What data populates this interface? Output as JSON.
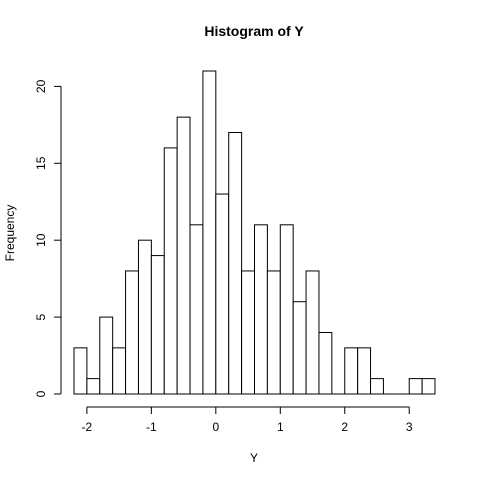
{
  "chart_data": {
    "type": "bar",
    "title": "Histogram of Y",
    "xlabel": "Y",
    "ylabel": "Frequency",
    "bin_width": 0.2,
    "bins": [
      {
        "start": -2.2,
        "end": -2.0,
        "count": 3
      },
      {
        "start": -2.0,
        "end": -1.8,
        "count": 1
      },
      {
        "start": -1.8,
        "end": -1.6,
        "count": 5
      },
      {
        "start": -1.6,
        "end": -1.4,
        "count": 3
      },
      {
        "start": -1.4,
        "end": -1.2,
        "count": 8
      },
      {
        "start": -1.2,
        "end": -1.0,
        "count": 10
      },
      {
        "start": -1.0,
        "end": -0.8,
        "count": 9
      },
      {
        "start": -0.8,
        "end": -0.6,
        "count": 16
      },
      {
        "start": -0.6,
        "end": -0.4,
        "count": 18
      },
      {
        "start": -0.4,
        "end": -0.2,
        "count": 11
      },
      {
        "start": -0.2,
        "end": 0.0,
        "count": 21
      },
      {
        "start": 0.0,
        "end": 0.2,
        "count": 13
      },
      {
        "start": 0.2,
        "end": 0.4,
        "count": 17
      },
      {
        "start": 0.4,
        "end": 0.6,
        "count": 8
      },
      {
        "start": 0.6,
        "end": 0.8,
        "count": 11
      },
      {
        "start": 0.8,
        "end": 1.0,
        "count": 8
      },
      {
        "start": 1.0,
        "end": 1.2,
        "count": 11
      },
      {
        "start": 1.2,
        "end": 1.4,
        "count": 6
      },
      {
        "start": 1.4,
        "end": 1.6,
        "count": 8
      },
      {
        "start": 1.6,
        "end": 1.8,
        "count": 4
      },
      {
        "start": 1.8,
        "end": 2.0,
        "count": 0
      },
      {
        "start": 2.0,
        "end": 2.2,
        "count": 3
      },
      {
        "start": 2.2,
        "end": 2.4,
        "count": 3
      },
      {
        "start": 2.4,
        "end": 2.6,
        "count": 1
      },
      {
        "start": 2.6,
        "end": 2.8,
        "count": 0
      },
      {
        "start": 2.8,
        "end": 3.0,
        "count": 0
      },
      {
        "start": 3.0,
        "end": 3.2,
        "count": 1
      },
      {
        "start": 3.2,
        "end": 3.4,
        "count": 1
      }
    ],
    "xlim": [
      -2.2,
      3.4
    ],
    "ylim": [
      0,
      21
    ],
    "x_ticks": [
      -2,
      -1,
      0,
      1,
      2,
      3
    ],
    "x_tick_labels": [
      "-2",
      "-1",
      "0",
      "1",
      "2",
      "3"
    ],
    "y_ticks": [
      0,
      5,
      10,
      15,
      20
    ],
    "y_tick_labels": [
      "0",
      "5",
      "10",
      "15",
      "20"
    ],
    "grid": false,
    "bar_fill": "#ffffff",
    "bar_stroke": "#000000"
  }
}
